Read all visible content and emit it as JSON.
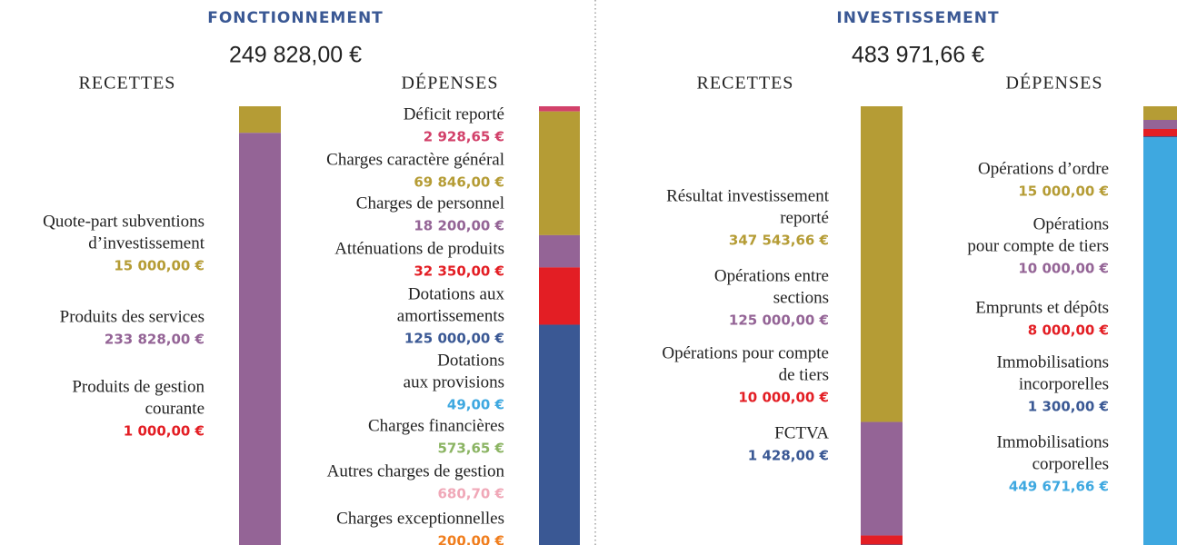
{
  "sections": [
    {
      "title": "FONCTIONNEMENT",
      "total": "249 828,00 €",
      "recettes": {
        "heading": "RECETTES",
        "items": [
          {
            "lines": [
              "Quote-part subventions",
              "d’investissement"
            ],
            "amount": {
              "value": 15000,
              "label": "15 000,00 €"
            },
            "color": "#b59c35"
          },
          {
            "lines": [
              "Produits des services"
            ],
            "amount": {
              "value": 233828,
              "label": "233 828,00 €"
            },
            "color": "#946496"
          },
          {
            "lines": [
              "Produits de gestion",
              "courante"
            ],
            "amount": {
              "value": 1000,
              "label": "1 000,00 €"
            },
            "color": "#e31e24"
          }
        ]
      },
      "depenses": {
        "heading": "DÉPENSES",
        "items": [
          {
            "lines": [
              "Déficit reporté"
            ],
            "amount": {
              "value": 2928.65,
              "label": "2 928,65 €"
            },
            "color": "#d2416a"
          },
          {
            "lines": [
              "Charges caractère général"
            ],
            "amount": {
              "value": 69846,
              "label": "69 846,00 €"
            },
            "color": "#b59c35"
          },
          {
            "lines": [
              "Charges de personnel"
            ],
            "amount": {
              "value": 18200,
              "label": "18 200,00 €"
            },
            "color": "#946496"
          },
          {
            "lines": [
              "Atténuations de produits"
            ],
            "amount": {
              "value": 32350,
              "label": "32 350,00 €"
            },
            "color": "#e31e24"
          },
          {
            "lines": [
              "Dotations aux",
              "amortissements"
            ],
            "amount": {
              "value": 125000,
              "label": "125 000,00 €"
            },
            "color": "#3a5894"
          },
          {
            "lines": [
              "Dotations",
              "aux provisions"
            ],
            "amount": {
              "value": 49,
              "label": "49,00 €"
            },
            "color": "#3ea8e0"
          },
          {
            "lines": [
              "Charges financières"
            ],
            "amount": {
              "value": 573.65,
              "label": "573,65 €"
            },
            "color": "#8bb463"
          },
          {
            "lines": [
              "Autres charges de gestion"
            ],
            "amount": {
              "value": 680.7,
              "label": "680,70 €"
            },
            "color": "#f0a8b8"
          },
          {
            "lines": [
              "Charges exceptionnelles"
            ],
            "amount": {
              "value": 200,
              "label": "200,00 €"
            },
            "color": "#f07e1e"
          }
        ]
      }
    },
    {
      "title": "INVESTISSEMENT",
      "total": "483 971,66 €",
      "recettes": {
        "heading": "RECETTES",
        "items": [
          {
            "lines": [
              "Résultat investissement",
              "reporté"
            ],
            "amount": {
              "value": 347543.66,
              "label": "347 543,66 €"
            },
            "color": "#b59c35"
          },
          {
            "lines": [
              "Opérations entre",
              "sections"
            ],
            "amount": {
              "value": 125000,
              "label": "125 000,00 €"
            },
            "color": "#946496"
          },
          {
            "lines": [
              "Opérations pour compte",
              "de tiers"
            ],
            "amount": {
              "value": 10000,
              "label": "10 000,00 €"
            },
            "color": "#e31e24"
          },
          {
            "lines": [
              "FCTVA"
            ],
            "amount": {
              "value": 1428,
              "label": "1 428,00 €"
            },
            "color": "#3a5894"
          }
        ]
      },
      "depenses": {
        "heading": "DÉPENSES",
        "items": [
          {
            "lines": [
              "Opérations d’ordre"
            ],
            "amount": {
              "value": 15000,
              "label": "15 000,00 €"
            },
            "color": "#b59c35"
          },
          {
            "lines": [
              "Opérations",
              "pour compte de tiers"
            ],
            "amount": {
              "value": 10000,
              "label": "10 000,00 €"
            },
            "color": "#946496"
          },
          {
            "lines": [
              "Emprunts et dépôts"
            ],
            "amount": {
              "value": 8000,
              "label": "8 000,00 €"
            },
            "color": "#e31e24"
          },
          {
            "lines": [
              "Immobilisations",
              "incorporelles"
            ],
            "amount": {
              "value": 1300,
              "label": "1 300,00 €"
            },
            "color": "#3a5894"
          },
          {
            "lines": [
              "Immobilisations",
              "corporelles"
            ],
            "amount": {
              "value": 449671.66,
              "label": "449 671,66 €"
            },
            "color": "#3ea8e0"
          }
        ]
      }
    }
  ]
}
